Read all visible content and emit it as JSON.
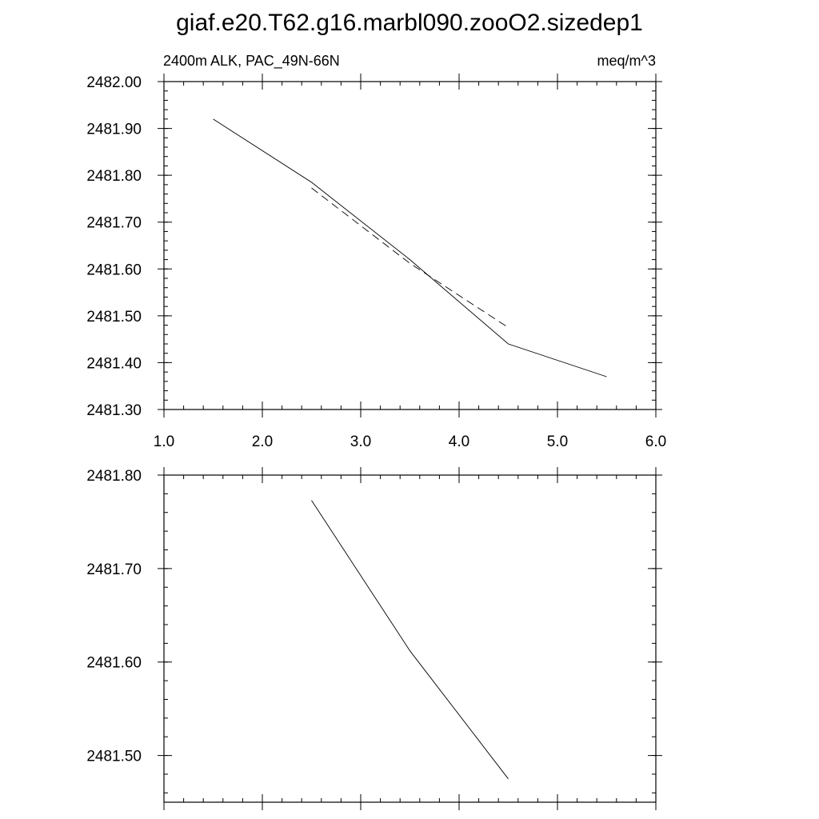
{
  "chart_data": [
    {
      "type": "line",
      "title": "giaf.e20.T62.g16.marbl090.zooO2.sizedep1",
      "subtitle_left": "2400m ALK, PAC_49N-66N",
      "subtitle_right": "meq/m^3",
      "xlim": [
        1.0,
        6.0
      ],
      "ylim": [
        2481.3,
        2482.0
      ],
      "xticks": [
        1.0,
        2.0,
        3.0,
        4.0,
        5.0,
        6.0
      ],
      "xtick_labels": [
        "1.0",
        "2.0",
        "3.0",
        "4.0",
        "5.0",
        "6.0"
      ],
      "yticks": [
        2481.3,
        2481.4,
        2481.5,
        2481.6,
        2481.7,
        2481.8,
        2481.9,
        2482.0
      ],
      "ytick_labels": [
        "2481.30",
        "2481.40",
        "2481.50",
        "2481.60",
        "2481.70",
        "2481.80",
        "2481.90",
        "2482.00"
      ],
      "grid": false,
      "series": [
        {
          "style": "solid",
          "x": [
            1.5,
            2.5,
            3.5,
            4.5,
            5.5
          ],
          "y": [
            2481.92,
            2481.785,
            2481.62,
            2481.44,
            2481.37
          ]
        },
        {
          "style": "dashed",
          "x": [
            2.5,
            3.5,
            4.5
          ],
          "y": [
            2481.773,
            2481.612,
            2481.475
          ]
        }
      ]
    },
    {
      "type": "line",
      "xlim": [
        1.0,
        6.0
      ],
      "ylim": [
        2481.45,
        2481.8
      ],
      "xticks": [
        1.0,
        2.0,
        3.0,
        4.0,
        5.0,
        6.0
      ],
      "yticks": [
        2481.5,
        2481.6,
        2481.7,
        2481.8
      ],
      "ytick_labels": [
        "2481.50",
        "2481.60",
        "2481.70",
        "2481.80"
      ],
      "grid": false,
      "series": [
        {
          "style": "solid",
          "x": [
            2.5,
            3.5,
            4.5
          ],
          "y": [
            2481.773,
            2481.612,
            2481.475
          ]
        }
      ]
    }
  ]
}
